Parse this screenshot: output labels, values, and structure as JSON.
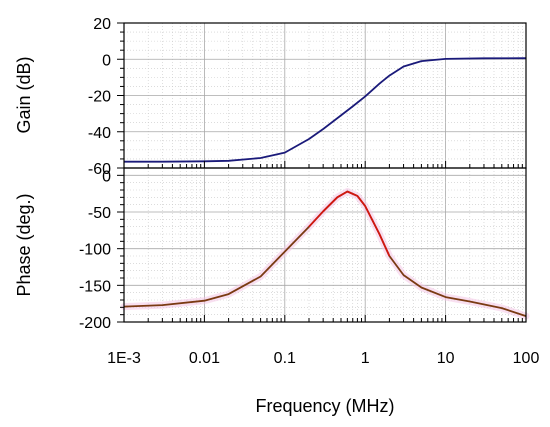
{
  "chart_data": [
    {
      "type": "line",
      "ylabel": "Gain (dB)",
      "ylim": [
        -60,
        20
      ],
      "yticks": [
        20,
        0,
        -20,
        -40,
        -60
      ],
      "xscale": "log",
      "xlim": [
        0.001,
        100
      ],
      "grid": true,
      "series": [
        {
          "color": "#1a1a7a",
          "x": [
            0.001,
            0.003,
            0.01,
            0.02,
            0.05,
            0.1,
            0.2,
            0.3,
            0.5,
            0.7,
            1,
            1.5,
            2,
            3,
            5,
            10,
            30,
            100
          ],
          "y": [
            -56.5,
            -56.5,
            -56.3,
            -56,
            -54.5,
            -51.5,
            -44,
            -38.5,
            -31,
            -26,
            -20.5,
            -13.5,
            -9,
            -4,
            -1,
            0.2,
            0.5,
            0.6
          ]
        }
      ]
    },
    {
      "type": "line",
      "ylabel": "Phase (deg.)",
      "xlabel": "Frequency (MHz)",
      "ylim": [
        -200,
        10
      ],
      "yticks": [
        0,
        -50,
        -100,
        -150,
        -200
      ],
      "xscale": "log",
      "xlim": [
        0.001,
        100
      ],
      "xtick_labels": [
        "1E-3",
        "0.01",
        "0.1",
        "1",
        "10",
        "100"
      ],
      "grid": true,
      "series": [
        {
          "color": "#7a3a12",
          "highlight_color": "#e01010",
          "x": [
            0.001,
            0.003,
            0.01,
            0.02,
            0.05,
            0.1,
            0.2,
            0.3,
            0.45,
            0.6,
            0.8,
            1,
            1.5,
            2,
            3,
            5,
            10,
            20,
            50,
            100
          ],
          "y": [
            -179,
            -177,
            -171,
            -162,
            -138,
            -104,
            -70,
            -49,
            -30,
            -22,
            -28,
            -42,
            -80,
            -110,
            -136,
            -153,
            -166,
            -172,
            -181,
            -192
          ]
        }
      ]
    }
  ]
}
